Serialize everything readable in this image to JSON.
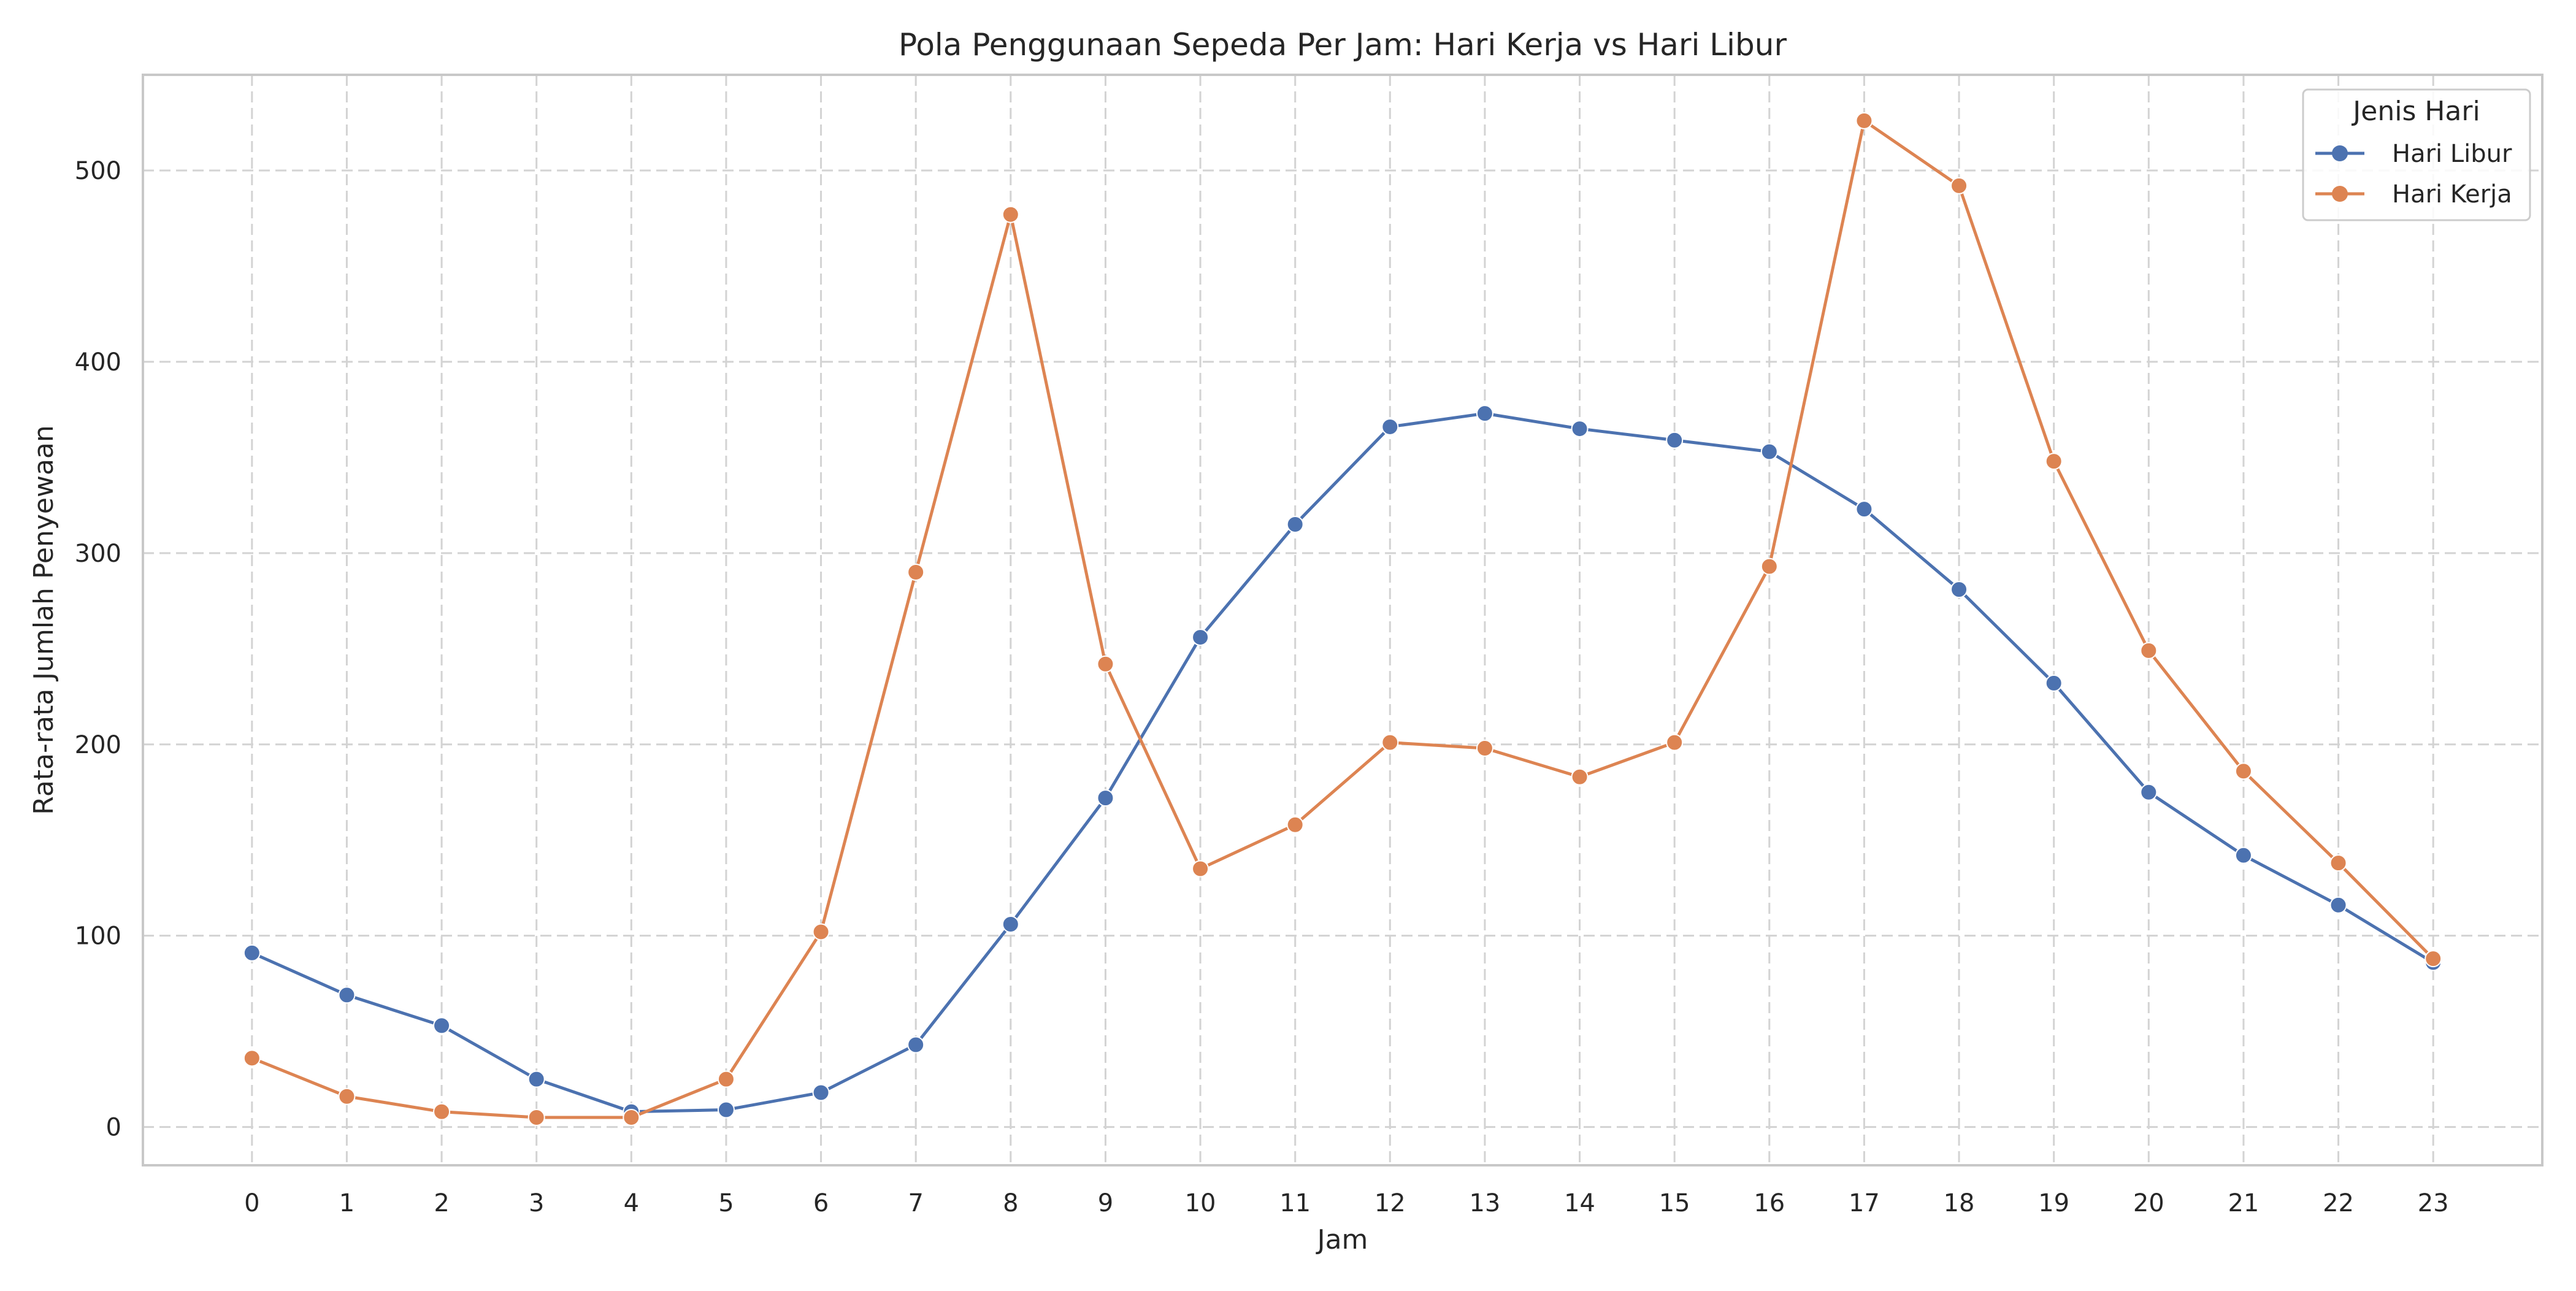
{
  "chart_data": {
    "type": "line",
    "title": "Pola Penggunaan Sepeda Per Jam: Hari Kerja vs Hari Libur",
    "xlabel": "Jam",
    "ylabel": "Rata-rata Jumlah Penyewaan",
    "x": [
      0,
      1,
      2,
      3,
      4,
      5,
      6,
      7,
      8,
      9,
      10,
      11,
      12,
      13,
      14,
      15,
      16,
      17,
      18,
      19,
      20,
      21,
      22,
      23
    ],
    "xticks": [
      "0",
      "1",
      "2",
      "3",
      "4",
      "5",
      "6",
      "7",
      "8",
      "9",
      "10",
      "11",
      "12",
      "13",
      "14",
      "15",
      "16",
      "17",
      "18",
      "19",
      "20",
      "21",
      "22",
      "23"
    ],
    "yticks": [
      "0",
      "100",
      "200",
      "300",
      "400",
      "500"
    ],
    "ylim": [
      -20,
      550
    ],
    "xlim": [
      -1.15,
      24.15
    ],
    "grid": true,
    "legend": {
      "title": "Jenis Hari",
      "placement": "top-right"
    },
    "series": [
      {
        "name": "Hari Libur",
        "color": "#4c72b0",
        "marker": "circle",
        "values": [
          91,
          69,
          53,
          25,
          8,
          9,
          18,
          43,
          106,
          172,
          256,
          315,
          366,
          373,
          365,
          359,
          353,
          323,
          281,
          232,
          175,
          142,
          116,
          86
        ]
      },
      {
        "name": "Hari Kerja",
        "color": "#dd8452",
        "marker": "circle",
        "values": [
          36,
          16,
          8,
          5,
          5,
          25,
          102,
          290,
          477,
          242,
          135,
          158,
          201,
          198,
          183,
          201,
          293,
          526,
          492,
          348,
          249,
          186,
          138,
          88
        ]
      }
    ]
  }
}
